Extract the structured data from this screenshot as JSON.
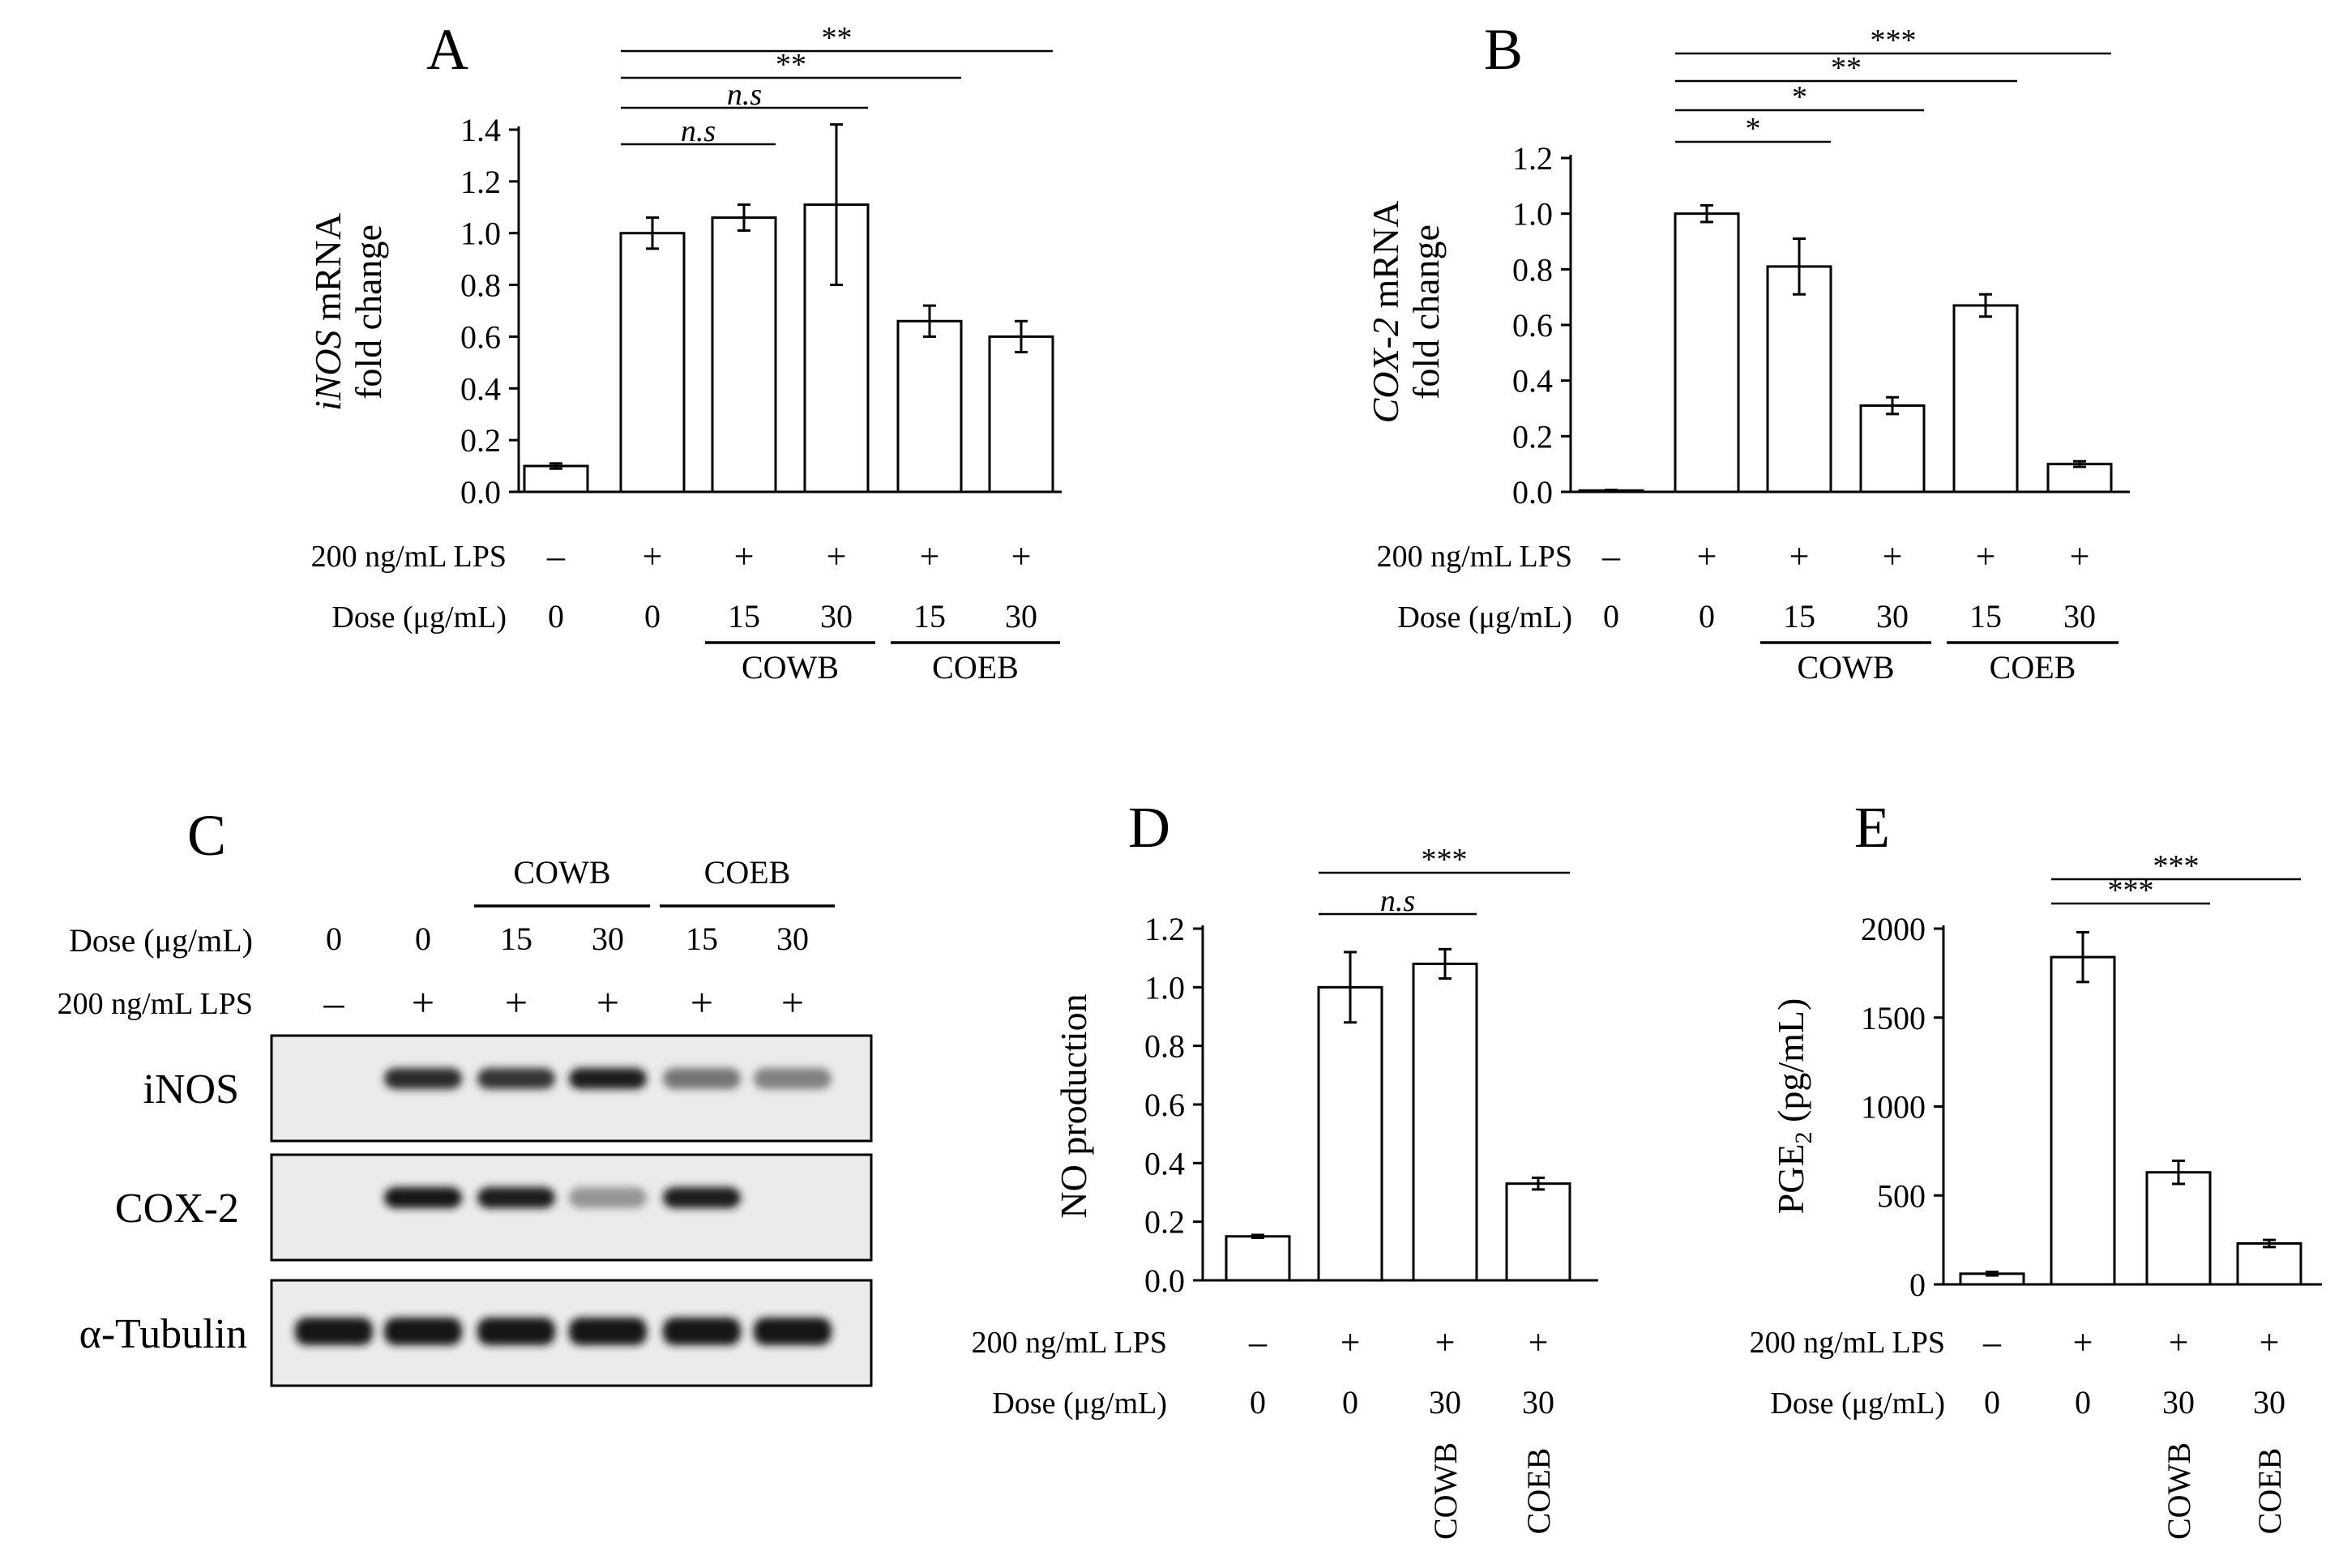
{
  "chart_data": [
    {
      "panel": "A",
      "type": "bar",
      "ylabel_italic": "iNOS",
      "ylabel_rest": " mRNA",
      "ylabel_line2": "fold change",
      "ylim": [
        0,
        1.4
      ],
      "yticks": [
        "0.0",
        "0.2",
        "0.4",
        "0.6",
        "0.8",
        "1.0",
        "1.2",
        "1.4"
      ],
      "values": [
        0.1,
        1.0,
        1.06,
        1.11,
        0.66,
        0.6
      ],
      "errors": [
        0.01,
        0.06,
        0.05,
        0.31,
        0.06,
        0.06
      ],
      "row_labels": [
        "200 ng/mL LPS",
        "Dose (μg/mL)"
      ],
      "lps": [
        "–",
        "+",
        "+",
        "+",
        "+",
        "+"
      ],
      "doses": [
        "0",
        "0",
        "15",
        "30",
        "15",
        "30"
      ],
      "groups": [
        {
          "label": "COWB",
          "from": 2,
          "to": 3
        },
        {
          "label": "COEB",
          "from": 4,
          "to": 5
        }
      ],
      "significance": [
        {
          "from": 1,
          "to": 2,
          "label": "n.s",
          "italic": true
        },
        {
          "from": 1,
          "to": 3,
          "label": "n.s",
          "italic": true
        },
        {
          "from": 1,
          "to": 4,
          "label": "**",
          "italic": false
        },
        {
          "from": 1,
          "to": 5,
          "label": "**",
          "italic": false
        }
      ]
    },
    {
      "panel": "B",
      "type": "bar",
      "ylabel_italic": "COX-2",
      "ylabel_rest": " mRNA",
      "ylabel_line2": "fold change",
      "ylim": [
        0,
        1.2
      ],
      "yticks": [
        "0.0",
        "0.2",
        "0.4",
        "0.6",
        "0.8",
        "1.0",
        "1.2"
      ],
      "values": [
        0.005,
        1.0,
        0.81,
        0.31,
        0.67,
        0.1
      ],
      "errors": [
        0.002,
        0.03,
        0.1,
        0.03,
        0.04,
        0.01
      ],
      "row_labels": [
        "200 ng/mL LPS",
        "Dose (μg/mL)"
      ],
      "lps": [
        "–",
        "+",
        "+",
        "+",
        "+",
        "+"
      ],
      "doses": [
        "0",
        "0",
        "15",
        "30",
        "15",
        "30"
      ],
      "groups": [
        {
          "label": "COWB",
          "from": 2,
          "to": 3
        },
        {
          "label": "COEB",
          "from": 4,
          "to": 5
        }
      ],
      "significance": [
        {
          "from": 1,
          "to": 2,
          "label": "*",
          "italic": false
        },
        {
          "from": 1,
          "to": 3,
          "label": "*",
          "italic": false
        },
        {
          "from": 1,
          "to": 4,
          "label": "**",
          "italic": false
        },
        {
          "from": 1,
          "to": 5,
          "label": "***",
          "italic": false
        }
      ]
    },
    {
      "panel": "D",
      "type": "bar",
      "ylabel": "NO production",
      "ylim": [
        0,
        1.2
      ],
      "yticks": [
        "0.0",
        "0.2",
        "0.4",
        "0.6",
        "0.8",
        "1.0",
        "1.2"
      ],
      "values": [
        0.15,
        1.0,
        1.08,
        0.33
      ],
      "errors": [
        0.005,
        0.12,
        0.05,
        0.02
      ],
      "row_labels": [
        "200 ng/mL LPS",
        "Dose (μg/mL)"
      ],
      "lps": [
        "–",
        "+",
        "+",
        "+"
      ],
      "doses": [
        "0",
        "0",
        "30",
        "30"
      ],
      "extracts": [
        "",
        "",
        "COWB",
        "COEB"
      ],
      "significance": [
        {
          "from": 1,
          "to": 2,
          "label": "n.s",
          "italic": true
        },
        {
          "from": 1,
          "to": 3,
          "label": "***",
          "italic": false
        }
      ]
    },
    {
      "panel": "E",
      "type": "bar",
      "ylabel": "PGE",
      "ylabel_sub": "2",
      "ylabel_unit": " (pg/mL)",
      "ylim": [
        0,
        2000
      ],
      "yticks": [
        "0",
        "500",
        "1000",
        "1500",
        "2000"
      ],
      "values": [
        60,
        1840,
        630,
        230
      ],
      "errors": [
        10,
        140,
        65,
        20
      ],
      "row_labels": [
        "200 ng/mL LPS",
        "Dose (μg/mL)"
      ],
      "lps": [
        "–",
        "+",
        "+",
        "+"
      ],
      "doses": [
        "0",
        "0",
        "30",
        "30"
      ],
      "extracts": [
        "",
        "",
        "COWB",
        "COEB"
      ],
      "significance": [
        {
          "from": 1,
          "to": 2,
          "label": "***",
          "italic": false
        },
        {
          "from": 1,
          "to": 3,
          "label": "***",
          "italic": false
        }
      ]
    }
  ],
  "panel_letters": {
    "A": "A",
    "B": "B",
    "C": "C",
    "D": "D",
    "E": "E"
  },
  "blot": {
    "row_labels": [
      "Dose (μg/mL)",
      "200 ng/mL LPS"
    ],
    "doses": [
      "0",
      "0",
      "15",
      "30",
      "15",
      "30"
    ],
    "lps": [
      "–",
      "+",
      "+",
      "+",
      "+",
      "+"
    ],
    "groups": [
      {
        "label": "COWB",
        "from": 2,
        "to": 3
      },
      {
        "label": "COEB",
        "from": 4,
        "to": 5
      }
    ],
    "rows": [
      {
        "label": "iNOS",
        "intensity": [
          0,
          0.9,
          0.85,
          0.95,
          0.55,
          0.5
        ]
      },
      {
        "label": "COX-2",
        "intensity": [
          0,
          1.0,
          0.95,
          0.4,
          0.95,
          0
        ]
      },
      {
        "label": "α-Tubulin",
        "intensity": [
          1,
          1,
          1,
          1,
          1,
          1
        ]
      }
    ]
  }
}
